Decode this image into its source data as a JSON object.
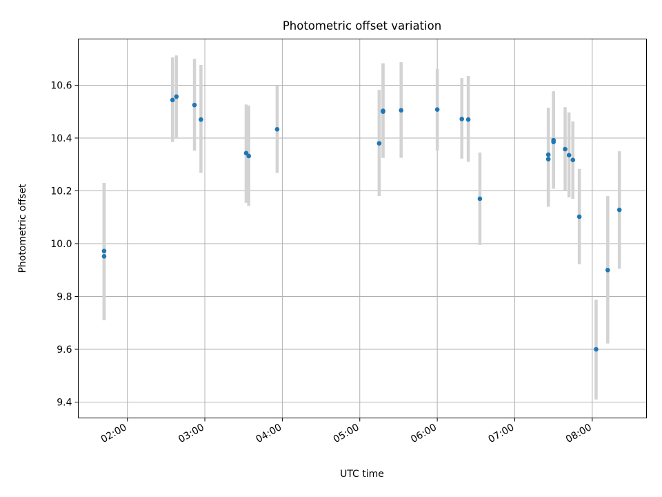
{
  "chart_data": {
    "type": "scatter",
    "title": "Photometric offset variation",
    "xlabel": "UTC time",
    "ylabel": "Photometric offset",
    "xlim": [
      "01:22",
      "08:42"
    ],
    "ylim": [
      9.34,
      10.775
    ],
    "x_ticks": [
      "02:00",
      "03:00",
      "04:00",
      "05:00",
      "06:00",
      "07:00",
      "08:00"
    ],
    "y_ticks": [
      "9.4",
      "9.6",
      "9.8",
      "10.0",
      "10.2",
      "10.4",
      "10.6"
    ],
    "grid": true,
    "series": [
      {
        "marker_color": "#1f77b4",
        "errorbar_color": "#d3d3d3",
        "points": [
          {
            "x": "01:42",
            "y": 9.972,
            "err_low": 9.71,
            "err_high": 10.23
          },
          {
            "x": "01:42",
            "y": 9.952,
            "err_low": 9.71,
            "err_high": 10.23
          },
          {
            "x": "02:35",
            "y": 10.544,
            "err_low": 10.385,
            "err_high": 10.705
          },
          {
            "x": "02:38",
            "y": 10.557,
            "err_low": 10.4,
            "err_high": 10.713
          },
          {
            "x": "02:52",
            "y": 10.525,
            "err_low": 10.352,
            "err_high": 10.7
          },
          {
            "x": "02:57",
            "y": 10.47,
            "err_low": 10.268,
            "err_high": 10.677
          },
          {
            "x": "03:32",
            "y": 10.343,
            "err_low": 10.155,
            "err_high": 10.527
          },
          {
            "x": "03:34",
            "y": 10.332,
            "err_low": 10.143,
            "err_high": 10.523
          },
          {
            "x": "03:56",
            "y": 10.433,
            "err_low": 10.268,
            "err_high": 10.6
          },
          {
            "x": "05:15",
            "y": 10.38,
            "err_low": 10.18,
            "err_high": 10.583
          },
          {
            "x": "05:18",
            "y": 10.503,
            "err_low": 10.325,
            "err_high": 10.683
          },
          {
            "x": "05:18",
            "y": 10.5,
            "err_low": 10.325,
            "err_high": 10.683
          },
          {
            "x": "05:32",
            "y": 10.505,
            "err_low": 10.325,
            "err_high": 10.687
          },
          {
            "x": "06:00",
            "y": 10.508,
            "err_low": 10.352,
            "err_high": 10.662
          },
          {
            "x": "06:19",
            "y": 10.472,
            "err_low": 10.322,
            "err_high": 10.627
          },
          {
            "x": "06:24",
            "y": 10.47,
            "err_low": 10.31,
            "err_high": 10.635
          },
          {
            "x": "06:33",
            "y": 10.17,
            "err_low": 9.995,
            "err_high": 10.345
          },
          {
            "x": "07:26",
            "y": 10.32,
            "err_low": 10.14,
            "err_high": 10.5
          },
          {
            "x": "07:26",
            "y": 10.337,
            "err_low": 10.14,
            "err_high": 10.515
          },
          {
            "x": "07:30",
            "y": 10.385,
            "err_low": 10.208,
            "err_high": 10.577
          },
          {
            "x": "07:30",
            "y": 10.392,
            "err_low": 10.208,
            "err_high": 10.577
          },
          {
            "x": "07:39",
            "y": 10.358,
            "err_low": 10.2,
            "err_high": 10.517
          },
          {
            "x": "07:42",
            "y": 10.335,
            "err_low": 10.175,
            "err_high": 10.497
          },
          {
            "x": "07:45",
            "y": 10.317,
            "err_low": 10.17,
            "err_high": 10.463
          },
          {
            "x": "07:50",
            "y": 10.102,
            "err_low": 9.922,
            "err_high": 10.283
          },
          {
            "x": "08:03",
            "y": 9.6,
            "err_low": 9.41,
            "err_high": 9.788
          },
          {
            "x": "08:12",
            "y": 9.9,
            "err_low": 9.622,
            "err_high": 10.18
          },
          {
            "x": "08:21",
            "y": 10.128,
            "err_low": 9.905,
            "err_high": 10.35
          }
        ]
      }
    ]
  }
}
